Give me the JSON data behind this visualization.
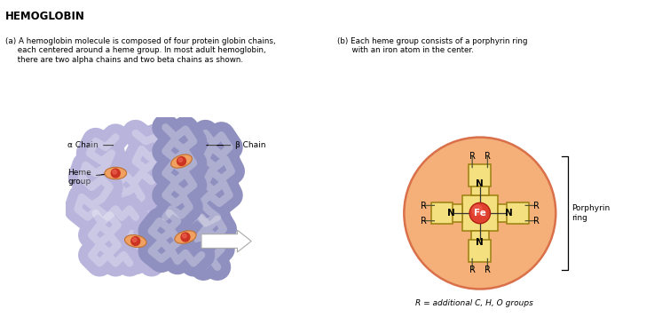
{
  "title": "HEMOGLOBIN",
  "bg_color": "#ddd8c8",
  "white_bg": "#ffffff",
  "header_text_a": "(a) A hemoglobin molecule is composed of four protein globin chains,\n     each centered around a heme group. In most adult hemoglobin,\n     there are two alpha chains and two beta chains as shown.",
  "header_text_b": "(b) Each heme group consists of a porphyrin ring\n      with an iron atom in the center.",
  "porphyrin_fill": "#f5b07a",
  "porphyrin_edge": "#d9704a",
  "pyrrole_fill": "#f5e080",
  "pyrrole_edge": "#9a8010",
  "fe_fill": "#e04030",
  "fe_edge": "#b02010",
  "label_porphyrin": "Porphyrin\nring",
  "label_r_note": "R = additional C, H, O groups",
  "label_alpha": "α Chain",
  "label_beta": "β Chain",
  "label_heme": "Heme\ngroup",
  "alpha_color": "#b8b4dc",
  "alpha_shadow": "#a0a0c8",
  "beta_color": "#9090c0",
  "beta_shadow": "#7878a8",
  "heme_fill": "#f0a060",
  "heme_center": "#cc3322",
  "arrow_color": "#ffffff",
  "arrow_edge": "#aaaaaa"
}
